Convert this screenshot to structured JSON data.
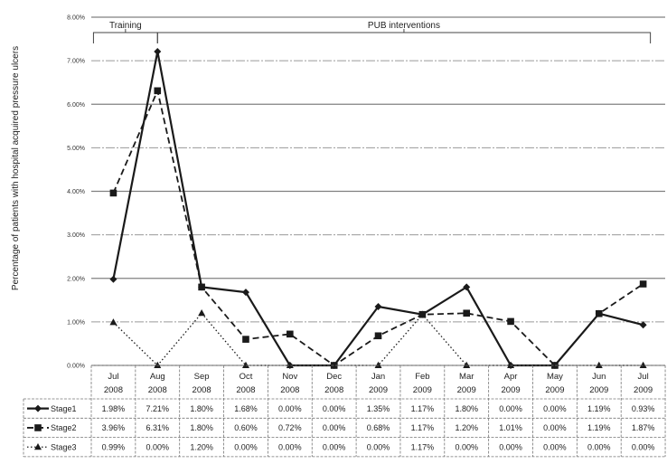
{
  "chart_data": {
    "type": "line",
    "ylabel": "Percentage of patients with hospital acquired pressure ulcers",
    "xlabel": "",
    "ylim": [
      0,
      8
    ],
    "y_ticks": [
      "0.00%",
      "1.00%",
      "2.00%",
      "3.00%",
      "4.00%",
      "5.00%",
      "6.00%",
      "7.00%",
      "8.00%"
    ],
    "grid": true,
    "legend": "data table at bottom",
    "categories": [
      [
        "Jul",
        "2008"
      ],
      [
        "Aug",
        "2008"
      ],
      [
        "Sep",
        "2008"
      ],
      [
        "Oct",
        "2008"
      ],
      [
        "Nov",
        "2008"
      ],
      [
        "Dec",
        "2008"
      ],
      [
        "Jan",
        "2009"
      ],
      [
        "Feb",
        "2009"
      ],
      [
        "Mar",
        "2009"
      ],
      [
        "Apr",
        "2009"
      ],
      [
        "May",
        "2009"
      ],
      [
        "Jun",
        "2009"
      ],
      [
        "Jul",
        "2009"
      ]
    ],
    "annotations": [
      {
        "label": "Training",
        "from": 0,
        "to": 1
      },
      {
        "label": "PUB interventions",
        "from": 1,
        "to": 12
      }
    ],
    "series": [
      {
        "name": "Stage1",
        "color": "#1a1a1a",
        "marker": "diamond",
        "line": "solid",
        "values": [
          1.98,
          7.21,
          1.8,
          1.68,
          0.0,
          0.0,
          1.35,
          1.17,
          1.8,
          0.0,
          0.0,
          1.19,
          0.93
        ],
        "labels": [
          "1.98%",
          "7.21%",
          "1.80%",
          "1.68%",
          "0.00%",
          "0.00%",
          "1.35%",
          "1.17%",
          "1.80%",
          "0.00%",
          "0.00%",
          "1.19%",
          "0.93%"
        ]
      },
      {
        "name": "Stage2",
        "color": "#1a1a1a",
        "marker": "square",
        "line": "dashed",
        "values": [
          3.96,
          6.31,
          1.8,
          0.6,
          0.72,
          0.0,
          0.68,
          1.17,
          1.2,
          1.01,
          0.0,
          1.19,
          1.87
        ],
        "labels": [
          "3.96%",
          "6.31%",
          "1.80%",
          "0.60%",
          "0.72%",
          "0.00%",
          "0.68%",
          "1.17%",
          "1.20%",
          "1.01%",
          "0.00%",
          "1.19%",
          "1.87%"
        ]
      },
      {
        "name": "Stage3",
        "color": "#1a1a1a",
        "marker": "triangle",
        "line": "dotted",
        "values": [
          0.99,
          0.0,
          1.2,
          0.0,
          0.0,
          0.0,
          0.0,
          1.17,
          0.0,
          0.0,
          0.0,
          0.0,
          0.0
        ],
        "labels": [
          "0.99%",
          "0.00%",
          "1.20%",
          "0.00%",
          "0.00%",
          "0.00%",
          "0.00%",
          "1.17%",
          "0.00%",
          "0.00%",
          "0.00%",
          "0.00%",
          "0.00%"
        ]
      }
    ]
  }
}
